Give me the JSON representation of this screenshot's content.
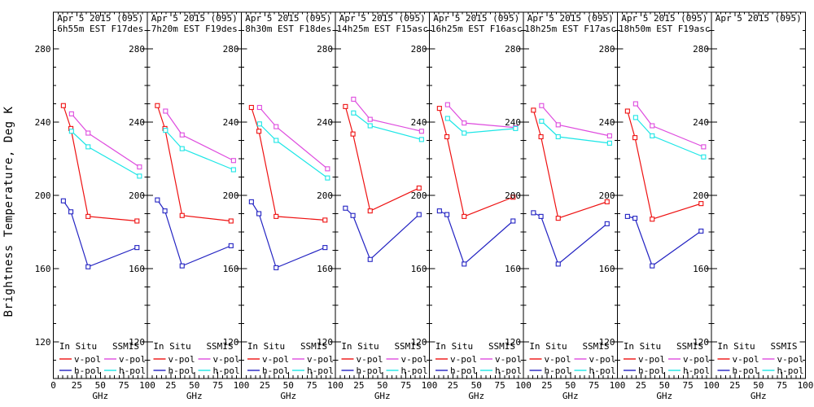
{
  "figure": {
    "background": "#ffffff",
    "frame_color": "#000000",
    "ylabel": "Brightness Temperature, Deg K",
    "xlabel": "GHz"
  },
  "chart_data": {
    "type": "line",
    "layout": "8 adjacent panels sharing one y-axis, line+square-marker series per panel",
    "title": "",
    "xlabel": "GHz",
    "ylabel": "Brightness Temperature, Deg K",
    "xlim": [
      0,
      100
    ],
    "ylim": [
      100,
      300
    ],
    "xticks": [
      0,
      25,
      50,
      75,
      100
    ],
    "yticks": [
      120,
      160,
      200,
      240,
      280
    ],
    "grid": false,
    "legend_position": "bottom-inside-each-panel",
    "legend": {
      "group_labels": [
        "In Situ",
        "SSMIS"
      ],
      "row_labels": [
        "v-pol",
        "h-pol"
      ]
    },
    "series_defs": [
      {
        "key": "in_situ_v",
        "group": "In Situ",
        "label": "v-pol",
        "color": "#ee1111",
        "x": [
          10.7,
          18.7,
          37,
          89
        ]
      },
      {
        "key": "in_situ_h",
        "group": "In Situ",
        "label": "h-pol",
        "color": "#2222c2",
        "x": [
          10.7,
          18.7,
          37,
          89
        ]
      },
      {
        "key": "ssmis_v",
        "group": "SSMIS",
        "label": "v-pol",
        "color": "#de4bde",
        "x": [
          19.35,
          37,
          91.66
        ]
      },
      {
        "key": "ssmis_h",
        "group": "SSMIS",
        "label": "h-pol",
        "color": "#1ce6e6",
        "x": [
          19.35,
          37,
          91.66
        ]
      }
    ],
    "panels": [
      {
        "title_line1": "Apr 5 2015 (095)",
        "title_line2": "6h55m EST F17des",
        "series": {
          "in_situ_v": [
            249,
            236.5,
            188.5,
            186
          ],
          "in_situ_h": [
            197,
            191,
            161,
            171.5
          ],
          "ssmis_v": [
            244.5,
            234,
            215.5
          ],
          "ssmis_h": [
            235,
            226.5,
            210.5
          ]
        }
      },
      {
        "title_line1": "Apr 5 2015 (095)",
        "title_line2": "7h20m EST F19des",
        "series": {
          "in_situ_v": [
            249,
            236.5,
            189,
            186
          ],
          "in_situ_h": [
            197.5,
            191.5,
            161.5,
            172.5
          ],
          "ssmis_v": [
            246,
            233,
            219
          ],
          "ssmis_h": [
            235.5,
            225.5,
            214
          ]
        }
      },
      {
        "title_line1": "Apr 5 2015 (095)",
        "title_line2": "8h30m EST F18des",
        "series": {
          "in_situ_v": [
            248,
            235,
            188.5,
            186.5
          ],
          "in_situ_h": [
            196.5,
            190,
            160.5,
            171.5
          ],
          "ssmis_v": [
            248,
            237.5,
            214.5
          ],
          "ssmis_h": [
            239,
            230,
            209.5
          ]
        }
      },
      {
        "title_line1": "Apr 5 2015 (095)",
        "title_line2": "14h25m EST F15asc",
        "series": {
          "in_situ_v": [
            248.5,
            233.5,
            191.5,
            204
          ],
          "in_situ_h": [
            193,
            189,
            165,
            189.5
          ],
          "ssmis_v": [
            252.5,
            241.5,
            235
          ],
          "ssmis_h": [
            245,
            238,
            230.5
          ]
        }
      },
      {
        "title_line1": "Apr 5 2015 (095)",
        "title_line2": "16h25m EST F16asc",
        "series": {
          "in_situ_v": [
            247.5,
            232,
            188.5,
            199
          ],
          "in_situ_h": [
            191.5,
            189.5,
            162.5,
            186
          ],
          "ssmis_v": [
            249.5,
            239.5,
            237
          ],
          "ssmis_h": [
            242,
            234,
            236.5
          ]
        }
      },
      {
        "title_line1": "Apr 5 2015 (095)",
        "title_line2": "18h25m EST F17asc",
        "series": {
          "in_situ_v": [
            246.5,
            232,
            187.5,
            196.5
          ],
          "in_situ_h": [
            190.5,
            188.5,
            162.5,
            184.5
          ],
          "ssmis_v": [
            249,
            238.5,
            232.5
          ],
          "ssmis_h": [
            240.5,
            232,
            228.5
          ]
        }
      },
      {
        "title_line1": "Apr 5 2015 (095)",
        "title_line2": "18h50m EST F19asc",
        "series": {
          "in_situ_v": [
            246,
            231.5,
            187,
            195.5
          ],
          "in_situ_h": [
            188.5,
            187.5,
            161.5,
            180.5
          ],
          "ssmis_v": [
            250,
            238,
            226.5
          ],
          "ssmis_h": [
            242.5,
            232.5,
            221
          ]
        }
      },
      {
        "title_line1": "Apr 5 2015 (095)",
        "title_line2": "",
        "series": {
          "in_situ_v": [],
          "in_situ_h": [],
          "ssmis_v": [],
          "ssmis_h": []
        }
      }
    ]
  }
}
